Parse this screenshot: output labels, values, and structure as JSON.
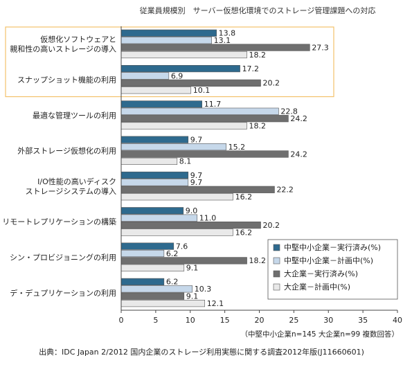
{
  "chart_data": {
    "type": "bar",
    "orientation": "horizontal",
    "title": "従業員規模別　サーバー仮想化環境でのストレージ管理課題への対応",
    "categories": [
      [
        "仮想化ソフトウェアと",
        "親和性の高いストレージの導入"
      ],
      [
        "スナップショット機能の利用"
      ],
      [
        "最適な管理ツールの利用"
      ],
      [
        "外部ストレージ仮想化の利用"
      ],
      [
        "I/O性能の高いディスク",
        "ストレージシステムの導入"
      ],
      [
        "リモートレプリケーションの構築"
      ],
      [
        "シン・プロビジョニングの利用"
      ],
      [
        "デ・デュプリケーションの利用"
      ]
    ],
    "series": [
      {
        "name": "中堅中小企業－実行済み(%)",
        "color": "#2e6a8e",
        "values": [
          13.8,
          17.2,
          11.7,
          9.7,
          9.7,
          9.0,
          7.6,
          6.2
        ]
      },
      {
        "name": "中堅中小企業－計画中(%)",
        "color": "#c6d8ea",
        "values": [
          13.1,
          6.9,
          22.8,
          15.2,
          9.7,
          11.0,
          6.2,
          10.3
        ]
      },
      {
        "name": "大企業－実行済み(%)",
        "color": "#6f6f6f",
        "values": [
          27.3,
          20.2,
          24.2,
          24.2,
          22.2,
          20.2,
          18.2,
          9.1
        ]
      },
      {
        "name": "大企業－計画中(%)",
        "color": "#e9e9e9",
        "values": [
          18.2,
          10.1,
          18.2,
          8.1,
          16.2,
          16.2,
          9.1,
          12.1
        ]
      }
    ],
    "xlim": [
      0,
      40
    ],
    "xticks": [
      0,
      5,
      10,
      15,
      20,
      25,
      30,
      35,
      40
    ],
    "highlight_box_color": "#f4c26b",
    "highlighted_categories": 2,
    "legend_position": "bottom-right",
    "sample_note": "（中堅中小企業n=145 大企業n=99 複数回答）",
    "source": "出典：IDC Japan 2/2012 国内企業のストレージ利用実態に関する調査2012年版(J11660601)"
  }
}
